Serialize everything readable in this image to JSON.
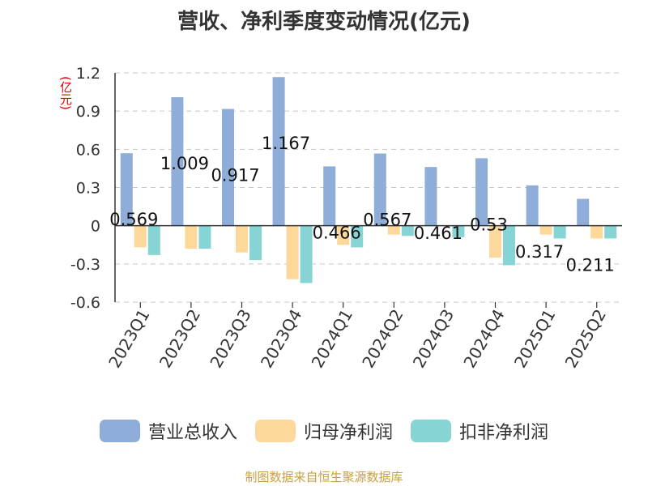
{
  "title": "营收、净利季度变动情况(亿元)",
  "unit_label": "(亿元)",
  "source": "制图数据来自恒生聚源数据库",
  "colors": {
    "revenue": "#8eadd9",
    "net_profit": "#fdd89b",
    "deducted_profit": "#86d4d3"
  },
  "legend": [
    {
      "label": "营业总收入",
      "color": "#8eadd9"
    },
    {
      "label": "归母净利润",
      "color": "#fdd89b"
    },
    {
      "label": "扣非净利润",
      "color": "#86d4d3"
    }
  ],
  "chart_data": {
    "type": "bar",
    "categories": [
      "2023Q1",
      "2023Q2",
      "2023Q3",
      "2023Q4",
      "2024Q1",
      "2024Q2",
      "2024Q3",
      "2024Q4",
      "2025Q1",
      "2025Q2"
    ],
    "series": [
      {
        "name": "营业总收入",
        "values": [
          0.569,
          1.009,
          0.917,
          1.167,
          0.466,
          0.567,
          0.461,
          0.53,
          0.317,
          0.211
        ]
      },
      {
        "name": "归母净利润",
        "values": [
          -0.17,
          -0.18,
          -0.21,
          -0.42,
          -0.15,
          -0.07,
          0.0,
          -0.25,
          -0.07,
          -0.1
        ]
      },
      {
        "name": "扣非净利润",
        "values": [
          -0.23,
          -0.18,
          -0.27,
          -0.45,
          -0.17,
          -0.08,
          -0.09,
          -0.31,
          -0.1,
          -0.1
        ]
      }
    ],
    "data_labels": [
      "0.569",
      "1.009",
      "0.917",
      "1.167",
      "0.466",
      "0.567",
      "0.461",
      "0.53",
      "0.317",
      "0.211"
    ],
    "yticks": [
      "1.2",
      "0.9",
      "0.6",
      "0.3",
      "0",
      "-0.3",
      "-0.6"
    ],
    "ylim": [
      -0.6,
      1.2
    ],
    "grid": true,
    "legend_position": "bottom"
  }
}
